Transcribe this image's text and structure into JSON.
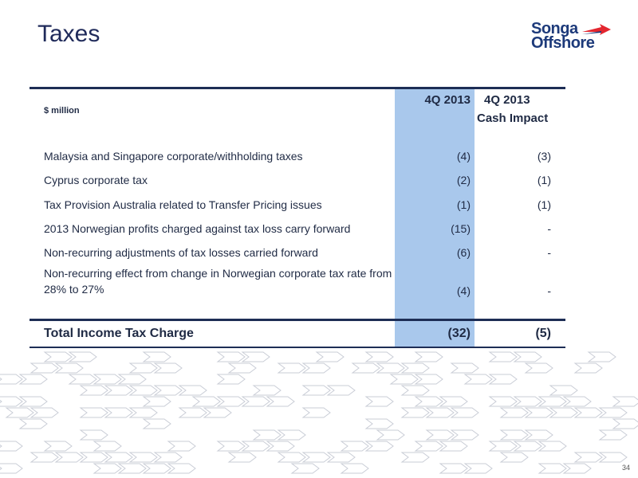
{
  "title": "Taxes",
  "logo": {
    "line1": "Songa",
    "line2": "Offshore",
    "accent_color": "#e3262f",
    "brand_color": "#1d3a7a"
  },
  "table": {
    "unit_label": "$ million",
    "col1_header": "4Q 2013",
    "col2_header_line1": "4Q 2013",
    "col2_header_line2": "Cash Impact",
    "highlight_color": "#a9c8ec",
    "rows": [
      {
        "label": "Malaysia and Singapore corporate/withholding taxes",
        "v1": "(4)",
        "v2": "(3)"
      },
      {
        "label": "Cyprus corporate tax",
        "v1": "(2)",
        "v2": "(1)"
      },
      {
        "label": "Tax Provision Australia related to Transfer Pricing issues",
        "v1": "(1)",
        "v2": "(1)"
      },
      {
        "label": "2013 Norwegian profits charged against tax loss carry forward",
        "v1": "(15)",
        "v2": "-"
      },
      {
        "label": "Non-recurring adjustments of tax losses carried forward",
        "v1": "(6)",
        "v2": "-"
      },
      {
        "label": "Non-recurring effect from change in Norwegian corporate tax rate from 28% to 27%",
        "v1": "(4)",
        "v2": "-"
      }
    ],
    "total": {
      "label": "Total Income Tax Charge",
      "v1": "(32)",
      "v2": "(5)"
    }
  },
  "page_number": "34"
}
